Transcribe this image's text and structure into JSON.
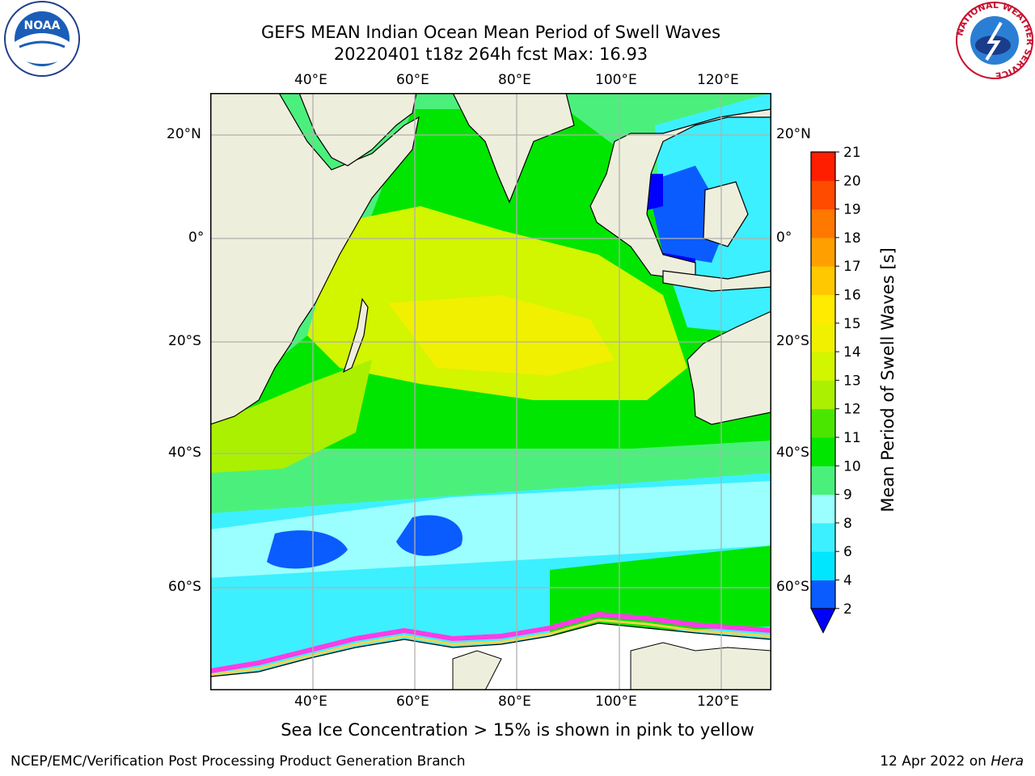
{
  "header": {
    "title_line1": "GEFS MEAN Indian Ocean Mean Period of Swell Waves",
    "title_line2": "20220401 t18z 264h fcst   Max: 16.93"
  },
  "map": {
    "lon_ticks": [
      "40°E",
      "60°E",
      "80°E",
      "100°E",
      "120°E"
    ],
    "lat_ticks": [
      "20°N",
      "0°",
      "20°S",
      "40°S",
      "60°S"
    ],
    "land_color": "#eeeedc",
    "grid_color": "#b0b0b0"
  },
  "colorbar": {
    "label": "Mean Period of Swell Waves [s]",
    "ticks": [
      "2",
      "4",
      "6",
      "8",
      "9",
      "10",
      "11",
      "12",
      "13",
      "14",
      "15",
      "16",
      "17",
      "18",
      "19",
      "20",
      "21"
    ],
    "colors": [
      "#0a5cff",
      "#00e6ff",
      "#3cf0ff",
      "#9bffff",
      "#4bf07c",
      "#00e600",
      "#4be600",
      "#aaf000",
      "#d2f500",
      "#f0f000",
      "#ffeb00",
      "#ffc800",
      "#ffa000",
      "#ff7800",
      "#ff4b00",
      "#ff1e00"
    ],
    "under_color": "#0000ff"
  },
  "caption": "Sea Ice Concentration > 15% is shown in pink to yellow",
  "footer": {
    "left": "NCEP/EMC/Verification Post Processing Product Generation Branch",
    "right_prefix": "12 Apr 2022 on ",
    "right_host": "Hera"
  },
  "logos": {
    "noaa": "NOAA",
    "nws_ring": "NATIONAL WEATHER SERVICE"
  }
}
